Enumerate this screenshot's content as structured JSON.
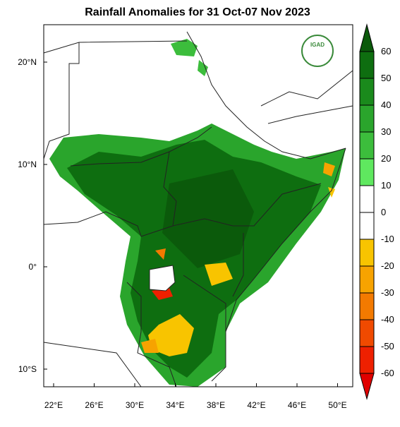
{
  "title": "Rainfall Anomalies for 31 Oct-07 Nov 2023",
  "logo": "IGAD",
  "lon_labels": [
    "22°E",
    "26°E",
    "30°E",
    "34°E",
    "38°E",
    "42°E",
    "46°E",
    "50°E"
  ],
  "lat_labels": [
    "20°N",
    "10°N",
    "0°",
    "10°S"
  ],
  "colorbar": {
    "ticks": [
      60,
      50,
      40,
      30,
      20,
      10,
      0,
      -10,
      -20,
      -30,
      -40,
      -50,
      -60
    ],
    "colors": [
      "#0b5a0b",
      "#0e6e10",
      "#1a8a1c",
      "#2aa52c",
      "#3cbd3c",
      "#5fe85f",
      "#ffffff",
      "#ffffff",
      "#f8c400",
      "#f7a300",
      "#f37a00",
      "#f04a00",
      "#ee2000",
      "#e00000"
    ]
  }
}
